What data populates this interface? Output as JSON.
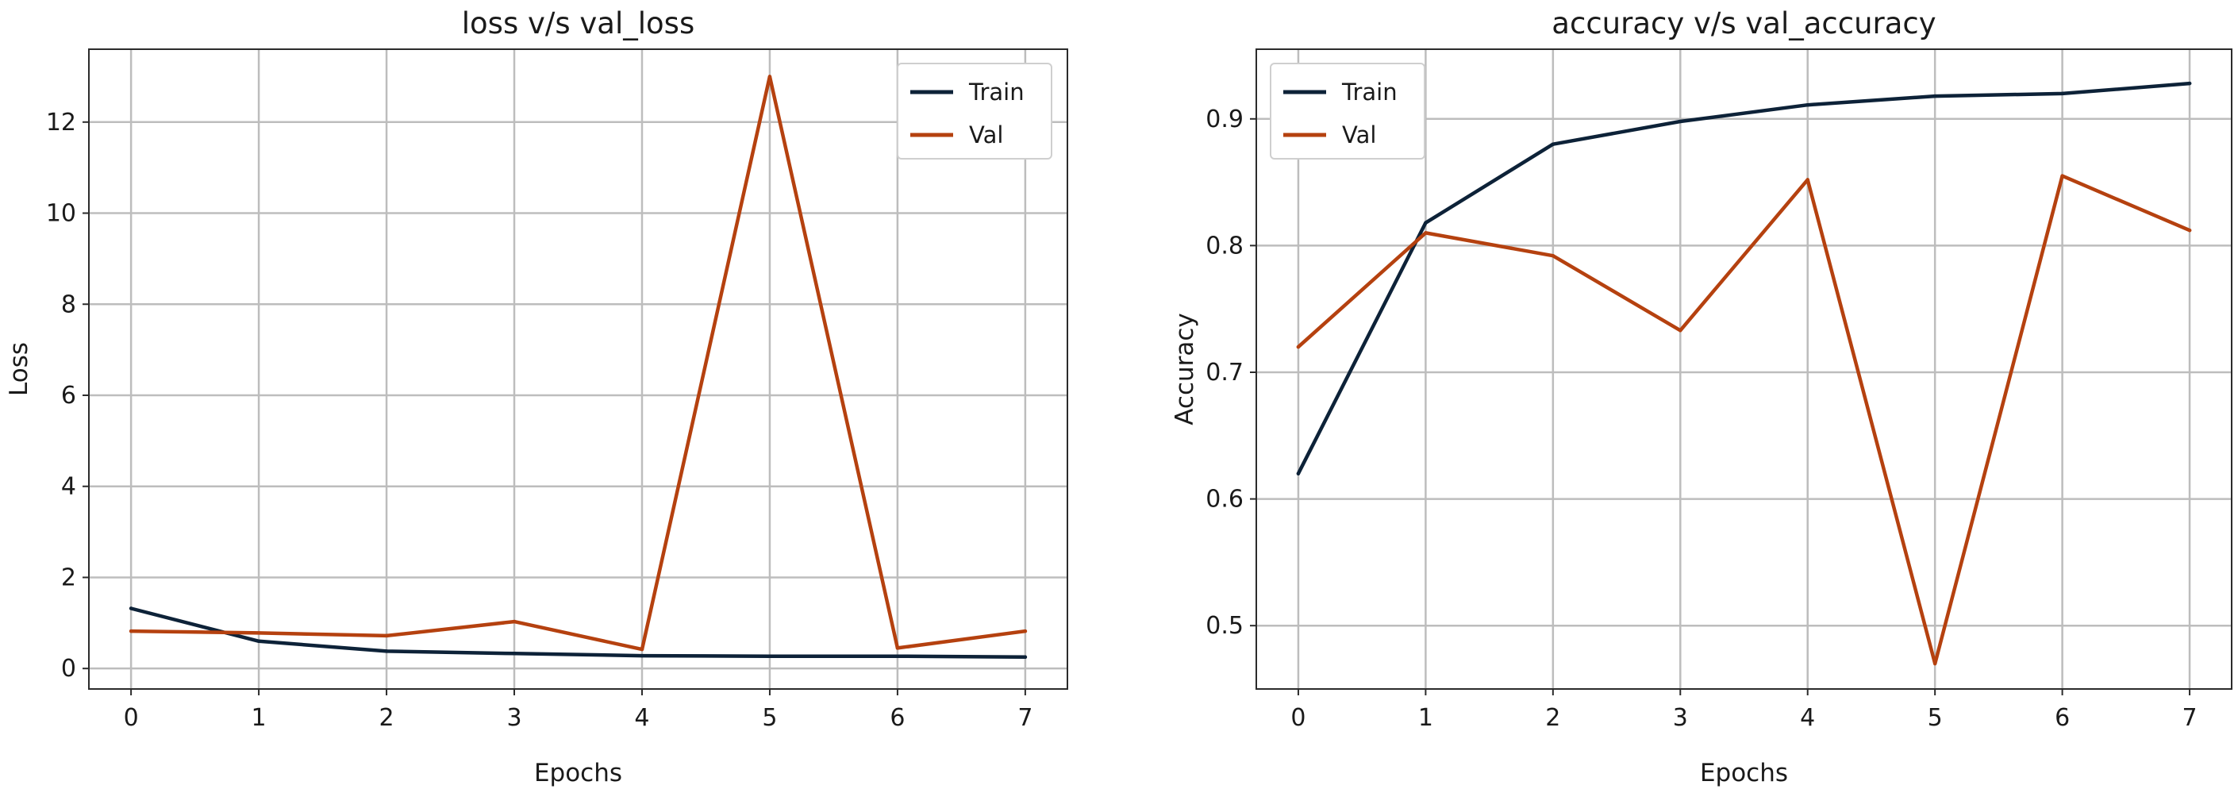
{
  "chart_data": [
    {
      "type": "line",
      "title": "loss v/s val_loss",
      "xlabel": "Epochs",
      "ylabel": "Loss",
      "x": [
        0,
        1,
        2,
        3,
        4,
        5,
        6,
        7
      ],
      "xticks": [
        "0",
        "1",
        "2",
        "3",
        "4",
        "5",
        "6",
        "7"
      ],
      "yticks": [
        0,
        2,
        4,
        6,
        8,
        10,
        12
      ],
      "ytick_labels": [
        "0",
        "2",
        "4",
        "6",
        "8",
        "10",
        "12"
      ],
      "xlim": [
        -0.33,
        7.33
      ],
      "ylim": [
        -0.45,
        13.6
      ],
      "grid": true,
      "legend_position": "top-right",
      "series": [
        {
          "name": "Train",
          "color": "#0d2238",
          "values": [
            1.32,
            0.6,
            0.38,
            0.33,
            0.28,
            0.27,
            0.27,
            0.25
          ]
        },
        {
          "name": "Val",
          "color": "#b5410f",
          "values": [
            0.82,
            0.78,
            0.72,
            1.03,
            0.42,
            13.0,
            0.45,
            0.82
          ]
        }
      ]
    },
    {
      "type": "line",
      "title": "accuracy v/s val_accuracy",
      "xlabel": "Epochs",
      "ylabel": "Accuracy",
      "x": [
        0,
        1,
        2,
        3,
        4,
        5,
        6,
        7
      ],
      "xticks": [
        "0",
        "1",
        "2",
        "3",
        "4",
        "5",
        "6",
        "7"
      ],
      "yticks": [
        0.5,
        0.6,
        0.7,
        0.8,
        0.9
      ],
      "ytick_labels": [
        "0.5",
        "0.6",
        "0.7",
        "0.8",
        "0.9"
      ],
      "xlim": [
        -0.33,
        7.33
      ],
      "ylim": [
        0.45,
        0.955
      ],
      "grid": true,
      "legend_position": "top-left",
      "series": [
        {
          "name": "Train",
          "color": "#0d2238",
          "values": [
            0.62,
            0.818,
            0.88,
            0.898,
            0.911,
            0.918,
            0.92,
            0.928
          ]
        },
        {
          "name": "Val",
          "color": "#b5410f",
          "values": [
            0.72,
            0.81,
            0.792,
            0.733,
            0.852,
            0.47,
            0.855,
            0.812
          ]
        }
      ]
    }
  ]
}
